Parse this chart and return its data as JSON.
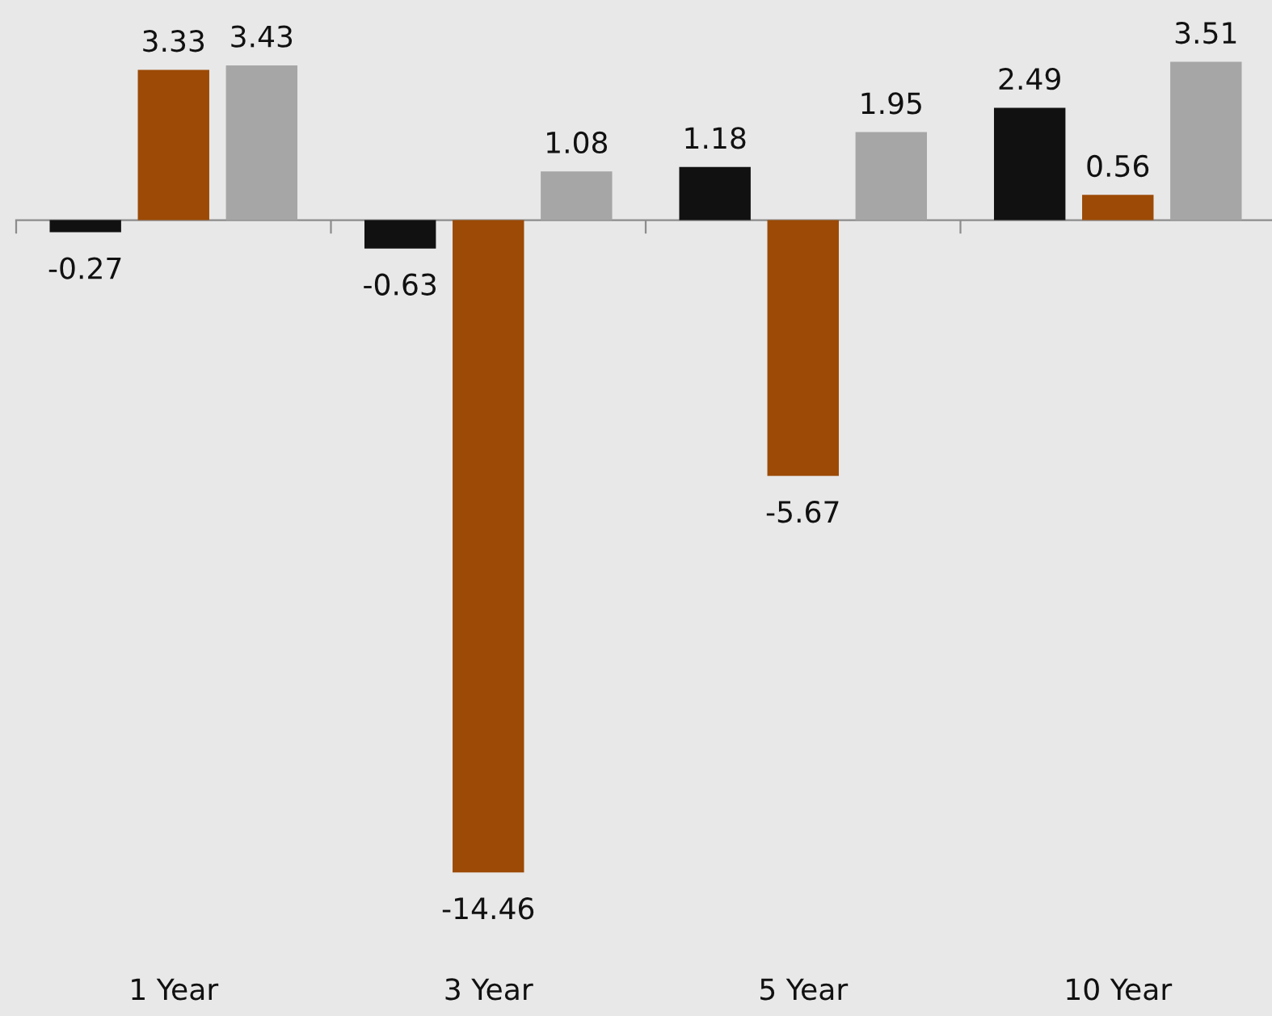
{
  "chart_data": {
    "type": "bar",
    "categories": [
      "1 Year",
      "3 Year",
      "5 Year",
      "10 Year"
    ],
    "series": [
      {
        "color": "#111111",
        "values": [
          -0.27,
          -0.63,
          1.18,
          2.49
        ]
      },
      {
        "color": "#9c4a06",
        "values": [
          3.33,
          -14.46,
          -5.67,
          0.56
        ]
      },
      {
        "color": "#a6a6a6",
        "values": [
          3.43,
          1.08,
          1.95,
          3.51
        ]
      }
    ],
    "data_labels": true
  }
}
